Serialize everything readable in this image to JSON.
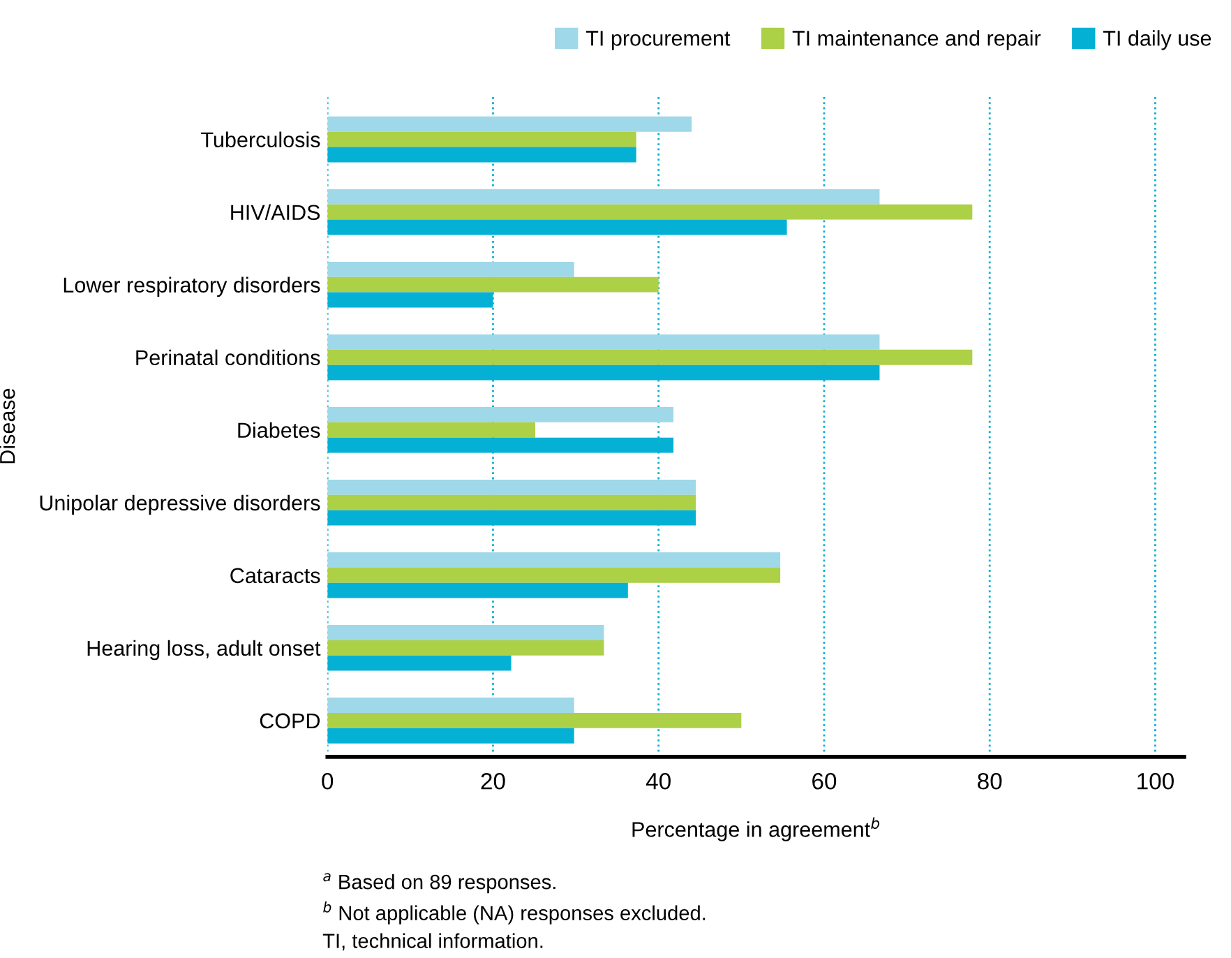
{
  "chart_data": {
    "type": "bar",
    "orientation": "horizontal",
    "ylabel": "Disease",
    "xlabel": "Percentage in agreement$^{b}$",
    "categories": [
      "Tuberculosis",
      "HIV/AIDS",
      "Lower respiratory disorders",
      "Perinatal conditions",
      "Diabetes",
      "Unipolar depressive disorders",
      "Cataracts",
      "Hearing loss, adult onset",
      "COPD"
    ],
    "series": [
      {
        "name": "TI procurement",
        "color": "#9fd8e8",
        "values": [
          44,
          66.7,
          29.8,
          66.7,
          41.8,
          44.5,
          54.7,
          33.4,
          29.8
        ]
      },
      {
        "name": "TI maintenance and repair",
        "color": "#acd046",
        "values": [
          37.3,
          77.9,
          40,
          77.9,
          25.1,
          44.5,
          54.7,
          33.4,
          50
        ]
      },
      {
        "name": "TI daily use",
        "color": "#05b0d5",
        "values": [
          37.3,
          55.5,
          20,
          66.7,
          41.8,
          44.5,
          36.3,
          22.2,
          29.8
        ]
      }
    ],
    "xlim": [
      0,
      103.5
    ],
    "xticks": [
      0,
      20,
      40,
      60,
      80,
      100
    ],
    "grid": "x",
    "legend": "top right",
    "annotations": [
      "$^{a}$ Based on 89 responses.",
      "$^{b}$ Not applicable (NA) responses excluded.",
      "TI, technical information."
    ]
  }
}
